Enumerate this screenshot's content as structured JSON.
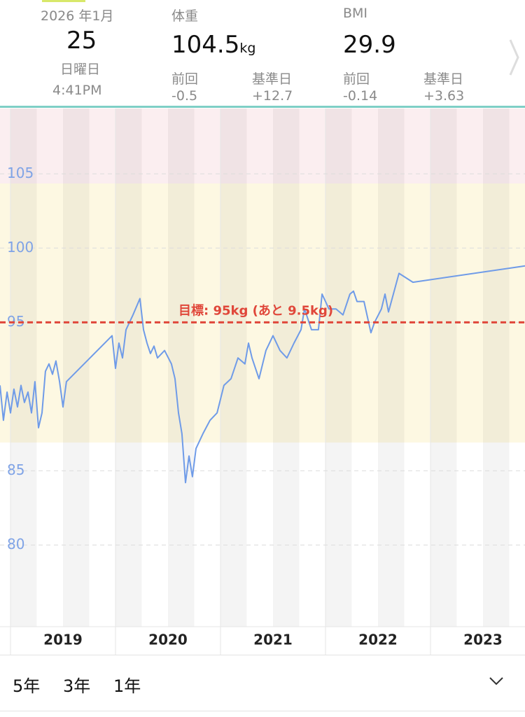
{
  "header": {
    "date": {
      "year_month": "2026 年1月",
      "day": "25",
      "weekday": "日曜日",
      "time": "4:41PM"
    },
    "weight": {
      "label": "体重",
      "value": "104.5",
      "unit": "kg",
      "prev_label": "前回",
      "prev": "-0.5",
      "base_label": "基準日",
      "base": "+12.7"
    },
    "bmi": {
      "label": "BMI",
      "value": "29.9",
      "prev_label": "前回",
      "prev": "-0.14",
      "base_label": "基準日",
      "base": "+3.63"
    }
  },
  "chart_data": {
    "type": "line",
    "color": "#6f9be8",
    "x": [
      2018.9,
      2018.933,
      2018.967,
      2019.0,
      2019.033,
      2019.067,
      2019.1,
      2019.133,
      2019.167,
      2019.2,
      2019.233,
      2019.267,
      2019.3,
      2019.333,
      2019.367,
      2019.4,
      2019.433,
      2019.467,
      2019.5,
      2019.533,
      2019.967,
      2020.0,
      2020.033,
      2020.067,
      2020.1,
      2020.167,
      2020.233,
      2020.267,
      2020.3,
      2020.333,
      2020.367,
      2020.4,
      2020.467,
      2020.533,
      2020.567,
      2020.6,
      2020.633,
      2020.667,
      2020.7,
      2020.733,
      2020.767,
      2020.833,
      2020.9,
      2020.967,
      2021.033,
      2021.1,
      2021.167,
      2021.233,
      2021.267,
      2021.3,
      2021.367,
      2021.433,
      2021.5,
      2021.567,
      2021.633,
      2021.7,
      2021.767,
      2021.8,
      2021.867,
      2021.933,
      2021.967,
      2022.033,
      2022.1,
      2022.167,
      2022.233,
      2022.267,
      2022.3,
      2022.367,
      2022.433,
      2022.467,
      2022.533,
      2022.567,
      2022.6,
      2022.7,
      2022.833,
      2023.9
    ],
    "values": [
      90.75,
      88.4,
      90.3,
      88.9,
      90.5,
      89.3,
      90.75,
      89.6,
      90.3,
      88.9,
      91.0,
      87.9,
      88.9,
      91.7,
      92.2,
      91.5,
      92.4,
      91.0,
      89.3,
      91.0,
      94.1,
      91.9,
      93.6,
      92.6,
      94.5,
      95.5,
      96.6,
      94.5,
      93.6,
      92.9,
      93.4,
      92.6,
      93.1,
      92.2,
      91.2,
      88.9,
      87.5,
      84.2,
      86.0,
      84.6,
      86.5,
      87.5,
      88.4,
      88.9,
      90.75,
      91.2,
      92.6,
      92.2,
      93.6,
      92.6,
      91.2,
      93.1,
      94.1,
      93.1,
      92.6,
      93.6,
      94.5,
      95.9,
      94.5,
      94.5,
      96.9,
      95.9,
      95.9,
      95.5,
      96.9,
      97.1,
      96.4,
      96.4,
      94.3,
      95.0,
      95.9,
      96.9,
      95.7,
      98.3,
      97.7,
      98.8
    ],
    "xlim": [
      2018.9,
      2023.9
    ],
    "xticks": [
      {
        "value": 2019.5,
        "label": "2019"
      },
      {
        "value": 2020.5,
        "label": "2020"
      },
      {
        "value": 2021.5,
        "label": "2021"
      },
      {
        "value": 2022.5,
        "label": "2022"
      },
      {
        "value": 2023.5,
        "label": "2023"
      }
    ],
    "ylim": [
      74.5,
      109.4
    ],
    "yticks": [
      80,
      85,
      95,
      100,
      105
    ],
    "grid": true,
    "goal": {
      "value": 95,
      "label": "目標: 95kg (あと 9.5kg)",
      "color": "#e0473a"
    }
  },
  "footer": {
    "ranges": [
      "5年",
      "3年",
      "1年"
    ]
  }
}
